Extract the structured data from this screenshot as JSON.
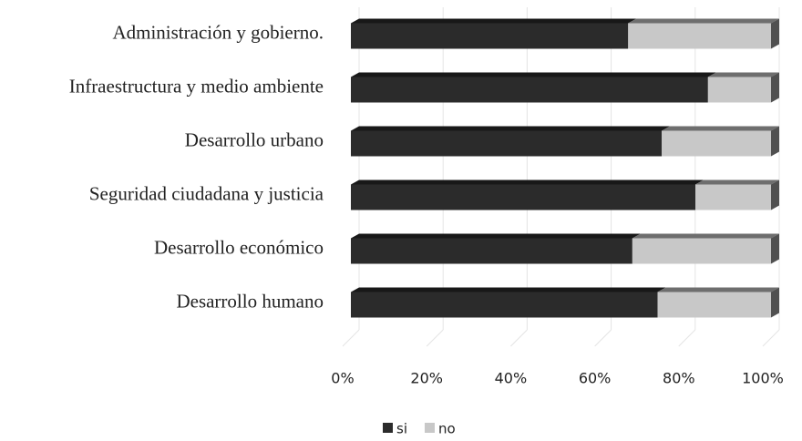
{
  "chart_data": {
    "type": "stacked-bar-horizontal",
    "categories": [
      "Administración y gobierno.",
      "Infraestructura y medio ambiente",
      "Desarrollo urbano",
      "Seguridad ciudadana y justicia",
      "Desarrollo económico",
      "Desarrollo humano"
    ],
    "series": [
      {
        "name": "si",
        "color": "#2b2b2b",
        "values": [
          66,
          85,
          74,
          82,
          67,
          73
        ]
      },
      {
        "name": "no",
        "color": "#c8c8c8",
        "values": [
          34,
          15,
          26,
          18,
          33,
          27
        ]
      }
    ],
    "xlim": [
      0,
      100
    ],
    "xticks": [
      {
        "value": 0,
        "label": "0%"
      },
      {
        "value": 20,
        "label": "20%"
      },
      {
        "value": 40,
        "label": "40%"
      },
      {
        "value": 60,
        "label": "60%"
      },
      {
        "value": 80,
        "label": "80%"
      },
      {
        "value": 100,
        "label": "100%"
      }
    ],
    "grid": true,
    "legend": "bottom"
  }
}
